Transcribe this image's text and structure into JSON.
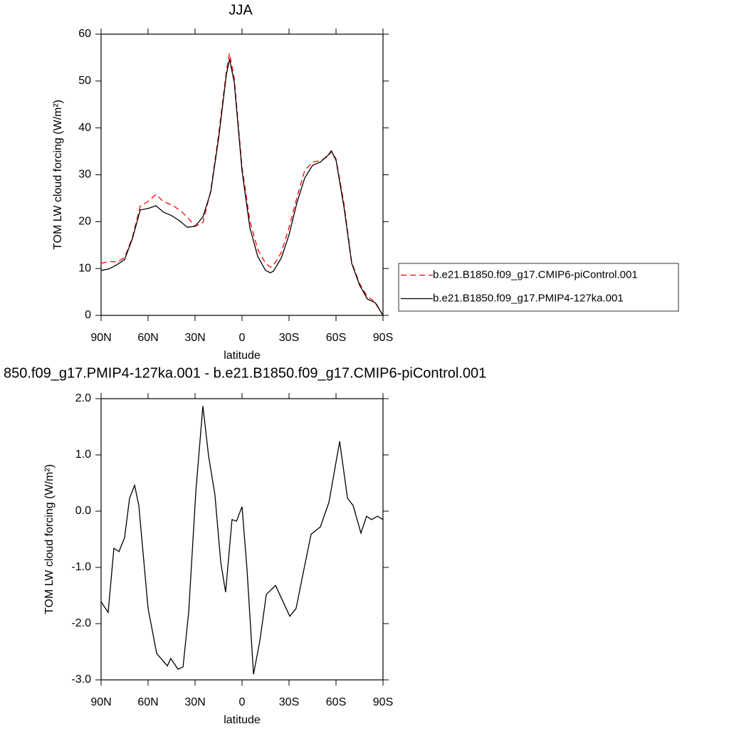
{
  "chart_data": [
    {
      "type": "line",
      "title": "JJA",
      "xlabel": "latitude",
      "ylabel": "TOM LW cloud forcing (W/m²)",
      "x": [
        90,
        85,
        80,
        75,
        70,
        65,
        60,
        55,
        50,
        45,
        40,
        35,
        30,
        25,
        20,
        15,
        10,
        8,
        5,
        0,
        -5,
        -10,
        -15,
        -18,
        -20,
        -25,
        -30,
        -35,
        -40,
        -45,
        -50,
        -55,
        -57,
        -60,
        -65,
        -70,
        -75,
        -80,
        -85,
        -90
      ],
      "series": [
        {
          "name": "b.e21.B1850.f09_g17.CMIP6-piControl.001",
          "color": "#ff0000",
          "dash": true,
          "values": [
            11.1,
            11.5,
            11.4,
            12.3,
            16.7,
            23.3,
            24.3,
            25.8,
            24.2,
            23.6,
            22.5,
            21,
            19,
            19.8,
            26.6,
            38.5,
            52.1,
            55.9,
            50.6,
            31.6,
            20.2,
            14.1,
            11.1,
            10.3,
            10.6,
            13.4,
            18.7,
            25.1,
            30.9,
            32.7,
            33,
            33.9,
            35,
            33.4,
            24,
            11.4,
            6.8,
            4,
            2.9,
            0
          ]
        },
        {
          "name": "b.e21.B1850.f09_g17.PMIP4-127ka.001",
          "color": "#000000",
          "dash": false,
          "values": [
            9.6,
            9.9,
            10.8,
            11.9,
            16.4,
            22.5,
            22.8,
            23.4,
            22,
            21.3,
            20.2,
            18.8,
            19,
            21,
            26.3,
            37.7,
            51.4,
            54.7,
            49.8,
            30.8,
            18.7,
            12.6,
            9.6,
            9.1,
            9.4,
            12.2,
            17.2,
            24,
            29.3,
            32,
            32.7,
            34.2,
            35.1,
            33.1,
            23.3,
            11.1,
            6.5,
            3.5,
            2.7,
            0
          ]
        }
      ],
      "xlim": [
        90,
        -90
      ],
      "xticks": [
        {
          "value": 90,
          "label": "90N"
        },
        {
          "value": 60,
          "label": "60N"
        },
        {
          "value": 30,
          "label": "30N"
        },
        0,
        {
          "value": -30,
          "label": "30S"
        },
        {
          "value": -60,
          "label": "60S"
        },
        {
          "value": -90,
          "label": "90S"
        }
      ],
      "ylim": [
        0,
        60
      ],
      "yticks": [
        0,
        10,
        20,
        30,
        40,
        50,
        60
      ],
      "legend": "right"
    },
    {
      "type": "line",
      "title": "850.f09_g17.PMIP4-127ka.001 - b.e21.B1850.f09_g17.CMIP6-piControl.001",
      "xlabel": "latitude",
      "ylabel": "TOM LW cloud forcing (W/m²)",
      "x": [
        90,
        85.5,
        81.8,
        78.6,
        75,
        71.8,
        68.6,
        65.9,
        60,
        54.5,
        47.7,
        45.5,
        40.9,
        37.7,
        34.1,
        29.5,
        25,
        21.4,
        17.3,
        13.6,
        10.5,
        6.4,
        3.6,
        0,
        -3.2,
        -7.3,
        -11.4,
        -15.5,
        -21.4,
        -25,
        -30.5,
        -34.5,
        -38.6,
        -44.1,
        -50,
        -55.5,
        -62.3,
        -67.3,
        -70.9,
        -75.9,
        -79.5,
        -82.7,
        -86.4,
        -90
      ],
      "values": [
        -1.61,
        -1.8,
        -0.66,
        -0.72,
        -0.47,
        0.23,
        0.46,
        0.1,
        -1.73,
        -2.53,
        -2.75,
        -2.62,
        -2.81,
        -2.77,
        -1.8,
        0.35,
        1.87,
        0.99,
        0.29,
        -0.91,
        -1.44,
        -0.15,
        -0.18,
        0.08,
        -1.04,
        -2.9,
        -2.3,
        -1.48,
        -1.32,
        -1.54,
        -1.87,
        -1.73,
        -1.16,
        -0.41,
        -0.28,
        0.16,
        1.24,
        0.23,
        0.1,
        -0.39,
        -0.09,
        -0.15,
        -0.09,
        -0.15
      ],
      "color": "#000000",
      "xlim": [
        90,
        -90
      ],
      "xticks": [
        {
          "value": 90,
          "label": "90N"
        },
        {
          "value": 60,
          "label": "60N"
        },
        {
          "value": 30,
          "label": "30N"
        },
        0,
        {
          "value": -30,
          "label": "30S"
        },
        {
          "value": -60,
          "label": "60S"
        },
        {
          "value": -90,
          "label": "90S"
        }
      ],
      "ylim": [
        -3,
        2
      ],
      "yticks": [
        {
          "value": -3,
          "label": "-3.0"
        },
        {
          "value": -2,
          "label": "-2.0"
        },
        {
          "value": -1,
          "label": "-1.0"
        },
        {
          "value": 0,
          "label": "0.0"
        },
        {
          "value": 1,
          "label": "1.0"
        },
        {
          "value": 2,
          "label": "2.0"
        }
      ]
    }
  ]
}
